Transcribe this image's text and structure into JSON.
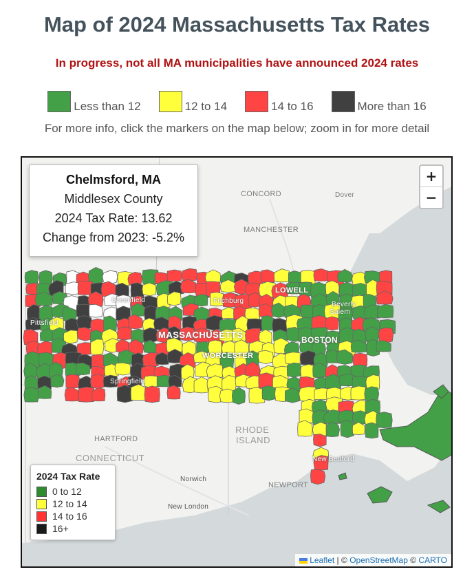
{
  "header": {
    "title": "Map of 2024 Massachusetts Tax Rates",
    "subtitle": "In progress, not all MA municipalities have announced 2024 rates",
    "info": "For more info, click the markers on the map below; zoom in for more detail"
  },
  "top_legend": [
    {
      "label": "Less than 12",
      "color": "#43a047"
    },
    {
      "label": "12 to 14",
      "color": "#ffff3b"
    },
    {
      "label": "14 to 16",
      "color": "#ff4444"
    },
    {
      "label": "More than 16",
      "color": "#404040"
    }
  ],
  "popup": {
    "town": "Chelmsford, MA",
    "county": "Middlesex County",
    "rate_line": "2024 Tax Rate: 13.62",
    "change_line": "Change from 2023: -5.2%"
  },
  "zoom": {
    "in_label": "+",
    "out_label": "−"
  },
  "map_legend": {
    "title": "2024 Tax Rate",
    "items": [
      {
        "label": "0 to 12",
        "color": "#2e8b2e"
      },
      {
        "label": "12 to 14",
        "color": "#ffff3b"
      },
      {
        "label": "14 to 16",
        "color": "#ff3333"
      },
      {
        "label": "16+",
        "color": "#1a1a1a"
      }
    ]
  },
  "map_labels": {
    "concord": "CONCORD",
    "dover": "Dover",
    "manchester": "MANCHESTER",
    "lowell": "LOWELL",
    "beverly": "Beverly",
    "salem": "Salem",
    "greenfield": "Greenfield",
    "fitchburg": "Fitchburg",
    "pittsfield": "Pittsfield",
    "massachusetts": "MASSACHUSETTS",
    "boston": "BOSTON",
    "worcester": "WORCESTER",
    "springfield": "Springfield",
    "rhode_island_1": "RHODE",
    "rhode_island_2": "ISLAND",
    "hartford": "HARTFORD",
    "connecticut": "CONNECTICUT",
    "new_bedford": "New Bedford",
    "norwich": "Norwich",
    "newport": "NEWPORT",
    "new_london": "New London"
  },
  "attribution": {
    "leaflet": "Leaflet",
    "sep1": " | © ",
    "osm": "OpenStreetMap",
    "sep2": " © ",
    "carto": "CARTO"
  }
}
